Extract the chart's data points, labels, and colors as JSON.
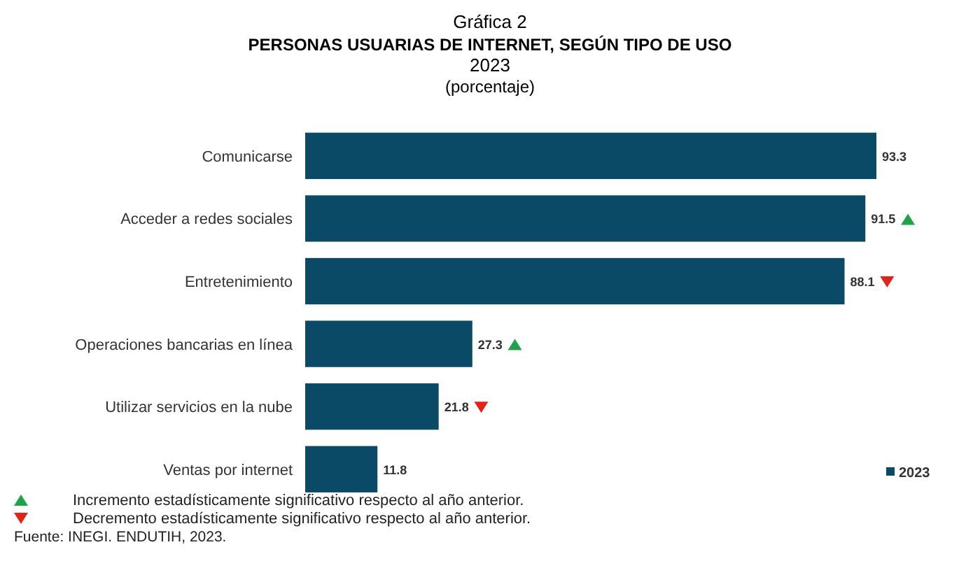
{
  "chart_data": {
    "type": "bar",
    "orientation": "horizontal",
    "title": "Gráfica 2",
    "subtitle": "PERSONAS USUARIAS DE INTERNET, SEGÚN TIPO DE USO\n2023\n(porcentaje)",
    "categories": [
      "Comunicarse",
      "Acceder a redes sociales",
      "Entretenimiento",
      "Operaciones bancarias en línea",
      "Utilizar servicios en la nube",
      "Ventas por internet"
    ],
    "series": [
      {
        "name": "2023",
        "color": "#0b4a67",
        "values": [
          93.3,
          91.5,
          88.1,
          27.3,
          21.8,
          11.8
        ]
      }
    ],
    "data_labels": true,
    "legend": "bottom right",
    "tick_labels": "y",
    "annotations": [
      "Incremento estadísticamente significativo respecto al año anterior.",
      "Decremento estadísticamente significativo respecto al año anterior.",
      "Fuente: INEGI. ENDUTIH, 2023."
    ]
  }
}
